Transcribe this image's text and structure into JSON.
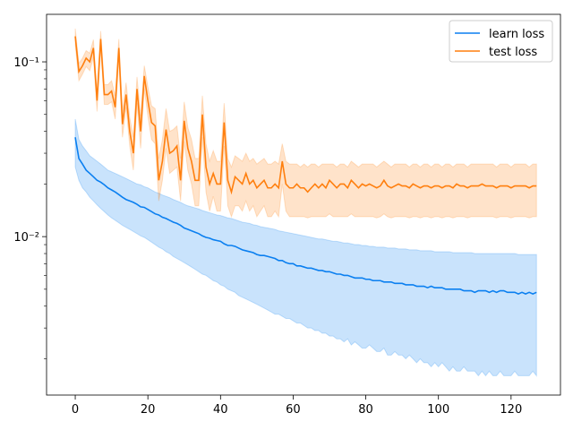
{
  "chart_data": {
    "type": "line",
    "log_y": true,
    "legend": "upper right",
    "xlim": [
      -7.9,
      133.6
    ],
    "ylim": [
      0.00124,
      0.187
    ],
    "xticks": [
      0,
      20,
      40,
      60,
      80,
      100,
      120
    ],
    "yticks": [
      {
        "value": 0.1,
        "label": "10⁻¹"
      },
      {
        "value": 0.01,
        "label": "10⁻²"
      }
    ],
    "yminor_ticks": [
      0.002,
      0.003,
      0.004,
      0.005,
      0.006,
      0.007,
      0.008,
      0.009,
      0.02,
      0.03,
      0.04,
      0.05,
      0.06,
      0.07,
      0.08,
      0.09
    ],
    "x": [
      0,
      1,
      2,
      3,
      4,
      5,
      6,
      7,
      8,
      9,
      10,
      11,
      12,
      13,
      14,
      15,
      16,
      17,
      18,
      19,
      20,
      21,
      22,
      23,
      24,
      25,
      26,
      27,
      28,
      29,
      30,
      31,
      32,
      33,
      34,
      35,
      36,
      37,
      38,
      39,
      40,
      41,
      42,
      43,
      44,
      45,
      46,
      47,
      48,
      49,
      50,
      51,
      52,
      53,
      54,
      55,
      56,
      57,
      58,
      59,
      60,
      61,
      62,
      63,
      64,
      65,
      66,
      67,
      68,
      69,
      70,
      71,
      72,
      73,
      74,
      75,
      76,
      77,
      78,
      79,
      80,
      81,
      82,
      83,
      84,
      85,
      86,
      87,
      88,
      89,
      90,
      91,
      92,
      93,
      94,
      95,
      96,
      97,
      98,
      99,
      100,
      101,
      102,
      103,
      104,
      105,
      106,
      107,
      108,
      109,
      110,
      111,
      112,
      113,
      114,
      115,
      116,
      117,
      118,
      119,
      120,
      121,
      122,
      123,
      124,
      125,
      126,
      127
    ],
    "series": [
      {
        "name": "learn loss",
        "color": "#0a7ff0",
        "values": [
          0.037,
          0.028,
          0.026,
          0.024,
          0.023,
          0.022,
          0.021,
          0.0205,
          0.0198,
          0.019,
          0.0185,
          0.018,
          0.0174,
          0.0168,
          0.0163,
          0.016,
          0.0157,
          0.0153,
          0.0148,
          0.0147,
          0.0143,
          0.0139,
          0.0135,
          0.0133,
          0.0129,
          0.0127,
          0.0124,
          0.0121,
          0.0119,
          0.0116,
          0.0112,
          0.011,
          0.0108,
          0.0106,
          0.0104,
          0.0101,
          0.0099,
          0.0098,
          0.0096,
          0.0095,
          0.0094,
          0.0091,
          0.0089,
          0.0089,
          0.0088,
          0.0086,
          0.0084,
          0.0083,
          0.0082,
          0.0081,
          0.0079,
          0.0078,
          0.0078,
          0.0077,
          0.0076,
          0.0075,
          0.0073,
          0.0073,
          0.0071,
          0.007,
          0.007,
          0.0068,
          0.0068,
          0.0067,
          0.0066,
          0.0066,
          0.0065,
          0.0064,
          0.0064,
          0.0063,
          0.0063,
          0.0062,
          0.0061,
          0.0061,
          0.006,
          0.006,
          0.0059,
          0.0058,
          0.0058,
          0.0058,
          0.0057,
          0.0057,
          0.0056,
          0.0056,
          0.0056,
          0.0055,
          0.0055,
          0.0055,
          0.0054,
          0.0054,
          0.0054,
          0.0053,
          0.0053,
          0.0053,
          0.0052,
          0.0052,
          0.0052,
          0.0051,
          0.0052,
          0.0051,
          0.0051,
          0.0051,
          0.005,
          0.005,
          0.005,
          0.005,
          0.005,
          0.0049,
          0.0049,
          0.0049,
          0.0048,
          0.0049,
          0.0049,
          0.0049,
          0.0048,
          0.0049,
          0.0048,
          0.0049,
          0.0049,
          0.0048,
          0.0048,
          0.0048,
          0.0047,
          0.0048,
          0.0047,
          0.0048,
          0.0047,
          0.0048
        ],
        "band_upper": [
          0.047,
          0.036,
          0.033,
          0.031,
          0.029,
          0.028,
          0.027,
          0.026,
          0.025,
          0.024,
          0.0235,
          0.023,
          0.0225,
          0.022,
          0.0215,
          0.021,
          0.0205,
          0.02,
          0.0198,
          0.0193,
          0.019,
          0.0185,
          0.018,
          0.0177,
          0.0173,
          0.017,
          0.0167,
          0.0163,
          0.016,
          0.0157,
          0.0153,
          0.015,
          0.0148,
          0.0146,
          0.0144,
          0.0141,
          0.0139,
          0.0137,
          0.0135,
          0.0133,
          0.0132,
          0.013,
          0.0128,
          0.0127,
          0.0125,
          0.0123,
          0.0121,
          0.012,
          0.0119,
          0.0117,
          0.0116,
          0.0114,
          0.0113,
          0.0112,
          0.0111,
          0.011,
          0.0108,
          0.0107,
          0.0106,
          0.0105,
          0.0104,
          0.0103,
          0.0102,
          0.0101,
          0.01,
          0.0099,
          0.0098,
          0.0097,
          0.0097,
          0.0096,
          0.0095,
          0.0094,
          0.0094,
          0.0093,
          0.0092,
          0.0092,
          0.0091,
          0.009,
          0.009,
          0.0089,
          0.0089,
          0.0088,
          0.0088,
          0.0087,
          0.0087,
          0.0087,
          0.0086,
          0.0086,
          0.0086,
          0.0085,
          0.0085,
          0.0085,
          0.0084,
          0.0084,
          0.0084,
          0.0083,
          0.0083,
          0.0083,
          0.0083,
          0.0082,
          0.0082,
          0.0082,
          0.0082,
          0.0082,
          0.0081,
          0.0081,
          0.0081,
          0.0081,
          0.0081,
          0.0081,
          0.008,
          0.008,
          0.008,
          0.008,
          0.008,
          0.008,
          0.008,
          0.008,
          0.008,
          0.008,
          0.008,
          0.008,
          0.0079,
          0.0079,
          0.0079,
          0.0079,
          0.0079,
          0.0079
        ],
        "band_lower": [
          0.025,
          0.021,
          0.019,
          0.018,
          0.0168,
          0.016,
          0.0152,
          0.0145,
          0.0139,
          0.0133,
          0.0128,
          0.0124,
          0.012,
          0.0116,
          0.0113,
          0.011,
          0.0107,
          0.0104,
          0.0101,
          0.0099,
          0.0096,
          0.0093,
          0.009,
          0.0087,
          0.0085,
          0.0082,
          0.008,
          0.0077,
          0.0075,
          0.0073,
          0.0071,
          0.0069,
          0.0067,
          0.0065,
          0.0063,
          0.0061,
          0.006,
          0.0058,
          0.0056,
          0.0055,
          0.0053,
          0.0052,
          0.005,
          0.0049,
          0.0048,
          0.0046,
          0.0045,
          0.0044,
          0.0043,
          0.0042,
          0.0041,
          0.004,
          0.0039,
          0.0038,
          0.0037,
          0.0036,
          0.0036,
          0.0035,
          0.0034,
          0.0034,
          0.0033,
          0.0032,
          0.0032,
          0.0031,
          0.003,
          0.003,
          0.0029,
          0.0029,
          0.0028,
          0.0028,
          0.0027,
          0.0027,
          0.0026,
          0.0026,
          0.0025,
          0.0026,
          0.0024,
          0.0025,
          0.0024,
          0.0023,
          0.0023,
          0.0024,
          0.0023,
          0.0022,
          0.0022,
          0.0023,
          0.0021,
          0.0021,
          0.0022,
          0.0021,
          0.0021,
          0.002,
          0.0021,
          0.002,
          0.0019,
          0.002,
          0.0019,
          0.0019,
          0.0018,
          0.0019,
          0.0018,
          0.0019,
          0.0018,
          0.0017,
          0.0018,
          0.0017,
          0.0017,
          0.0018,
          0.0017,
          0.0017,
          0.0017,
          0.0016,
          0.0017,
          0.0016,
          0.0017,
          0.0016,
          0.0016,
          0.0017,
          0.0016,
          0.0016,
          0.0016,
          0.0017,
          0.0016,
          0.0016,
          0.0016,
          0.0016,
          0.0017,
          0.0016
        ]
      },
      {
        "name": "test loss",
        "color": "#ff7f0e",
        "values": [
          0.14,
          0.088,
          0.095,
          0.105,
          0.1,
          0.12,
          0.06,
          0.135,
          0.065,
          0.065,
          0.068,
          0.055,
          0.12,
          0.044,
          0.065,
          0.04,
          0.03,
          0.07,
          0.04,
          0.083,
          0.06,
          0.045,
          0.043,
          0.021,
          0.027,
          0.041,
          0.03,
          0.031,
          0.033,
          0.021,
          0.046,
          0.032,
          0.027,
          0.021,
          0.021,
          0.05,
          0.025,
          0.02,
          0.023,
          0.02,
          0.02,
          0.045,
          0.021,
          0.018,
          0.022,
          0.021,
          0.02,
          0.023,
          0.02,
          0.021,
          0.019,
          0.02,
          0.021,
          0.019,
          0.019,
          0.02,
          0.019,
          0.027,
          0.02,
          0.019,
          0.019,
          0.02,
          0.019,
          0.019,
          0.018,
          0.019,
          0.02,
          0.019,
          0.02,
          0.019,
          0.021,
          0.02,
          0.019,
          0.02,
          0.02,
          0.019,
          0.021,
          0.02,
          0.019,
          0.02,
          0.0195,
          0.02,
          0.0195,
          0.019,
          0.0195,
          0.021,
          0.0195,
          0.019,
          0.0195,
          0.02,
          0.0195,
          0.0195,
          0.019,
          0.02,
          0.0195,
          0.019,
          0.0195,
          0.0195,
          0.019,
          0.0195,
          0.0195,
          0.019,
          0.0195,
          0.0195,
          0.019,
          0.02,
          0.0195,
          0.0195,
          0.019,
          0.0195,
          0.0195,
          0.0195,
          0.02,
          0.0195,
          0.0195,
          0.0195,
          0.019,
          0.0195,
          0.0195,
          0.0195,
          0.019,
          0.0195,
          0.0195,
          0.0195,
          0.0195,
          0.019,
          0.0195,
          0.0195
        ],
        "band_upper": [
          0.155,
          0.098,
          0.105,
          0.116,
          0.112,
          0.134,
          0.068,
          0.15,
          0.074,
          0.074,
          0.078,
          0.064,
          0.135,
          0.052,
          0.076,
          0.048,
          0.037,
          0.082,
          0.049,
          0.095,
          0.072,
          0.056,
          0.054,
          0.028,
          0.036,
          0.054,
          0.04,
          0.041,
          0.043,
          0.028,
          0.059,
          0.042,
          0.036,
          0.028,
          0.028,
          0.064,
          0.034,
          0.027,
          0.031,
          0.027,
          0.027,
          0.058,
          0.028,
          0.025,
          0.029,
          0.028,
          0.027,
          0.03,
          0.027,
          0.028,
          0.026,
          0.027,
          0.028,
          0.026,
          0.026,
          0.027,
          0.026,
          0.034,
          0.027,
          0.026,
          0.026,
          0.026,
          0.025,
          0.026,
          0.025,
          0.026,
          0.026,
          0.025,
          0.026,
          0.026,
          0.026,
          0.026,
          0.025,
          0.026,
          0.026,
          0.025,
          0.027,
          0.026,
          0.025,
          0.026,
          0.026,
          0.026,
          0.026,
          0.025,
          0.026,
          0.027,
          0.026,
          0.025,
          0.026,
          0.026,
          0.026,
          0.026,
          0.025,
          0.026,
          0.026,
          0.025,
          0.026,
          0.026,
          0.025,
          0.026,
          0.026,
          0.025,
          0.026,
          0.026,
          0.025,
          0.026,
          0.026,
          0.026,
          0.025,
          0.026,
          0.026,
          0.026,
          0.026,
          0.026,
          0.026,
          0.026,
          0.025,
          0.026,
          0.026,
          0.026,
          0.025,
          0.026,
          0.026,
          0.026,
          0.026,
          0.025,
          0.026,
          0.026
        ],
        "band_lower": [
          0.125,
          0.078,
          0.085,
          0.094,
          0.089,
          0.106,
          0.052,
          0.12,
          0.057,
          0.057,
          0.059,
          0.047,
          0.105,
          0.037,
          0.055,
          0.033,
          0.024,
          0.058,
          0.032,
          0.07,
          0.049,
          0.036,
          0.034,
          0.016,
          0.021,
          0.032,
          0.023,
          0.024,
          0.025,
          0.016,
          0.035,
          0.024,
          0.02,
          0.015,
          0.015,
          0.037,
          0.018,
          0.014,
          0.017,
          0.014,
          0.014,
          0.033,
          0.015,
          0.013,
          0.015,
          0.015,
          0.014,
          0.016,
          0.014,
          0.015,
          0.013,
          0.014,
          0.015,
          0.013,
          0.013,
          0.014,
          0.013,
          0.02,
          0.014,
          0.013,
          0.013,
          0.013,
          0.013,
          0.013,
          0.0128,
          0.013,
          0.013,
          0.013,
          0.013,
          0.013,
          0.0135,
          0.013,
          0.013,
          0.013,
          0.013,
          0.013,
          0.0135,
          0.013,
          0.013,
          0.013,
          0.013,
          0.013,
          0.013,
          0.0128,
          0.013,
          0.0135,
          0.013,
          0.0128,
          0.013,
          0.013,
          0.013,
          0.013,
          0.0128,
          0.013,
          0.013,
          0.0128,
          0.013,
          0.013,
          0.0128,
          0.013,
          0.013,
          0.0128,
          0.013,
          0.013,
          0.0128,
          0.013,
          0.013,
          0.013,
          0.0128,
          0.013,
          0.013,
          0.013,
          0.013,
          0.013,
          0.013,
          0.013,
          0.0128,
          0.013,
          0.013,
          0.013,
          0.0128,
          0.013,
          0.013,
          0.013,
          0.013,
          0.0128,
          0.013,
          0.013
        ]
      }
    ]
  }
}
